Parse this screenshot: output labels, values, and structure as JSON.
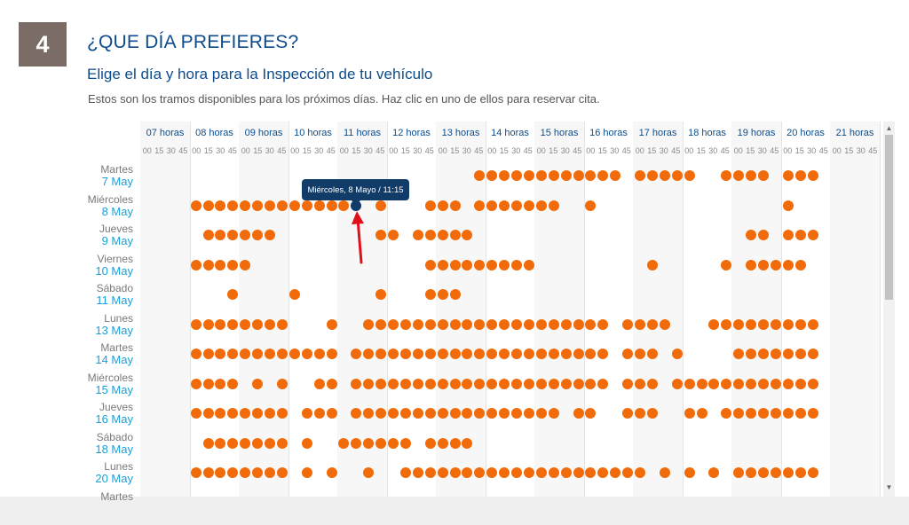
{
  "step": {
    "number": "4"
  },
  "heading": {
    "title": "¿QUE DÍA PREFIERES?",
    "subtitle": "Elige el día y hora para la Inspección de tu vehículo",
    "description": "Estos son los tramos disponibles para los próximos días. Haz clic en uno de ellos para reservar cita."
  },
  "hours": [
    "07 horas",
    "08 horas",
    "09 horas",
    "10 horas",
    "11 horas",
    "12 horas",
    "13 horas",
    "14 horas",
    "15 horas",
    "16 horas",
    "17 horas",
    "18 horas",
    "19 horas",
    "20 horas",
    "21 horas"
  ],
  "minutes_label": "00 15 30 45",
  "days": [
    {
      "weekday": "Martes",
      "date": "7 May",
      "slots": [
        27,
        28,
        29,
        30,
        31,
        32,
        33,
        34,
        35,
        36,
        37,
        38,
        40,
        41,
        42,
        43,
        44,
        47,
        48,
        49,
        50,
        52,
        53,
        54
      ]
    },
    {
      "weekday": "Miércoles",
      "date": "8 May",
      "slots": [
        4,
        5,
        6,
        7,
        8,
        9,
        10,
        11,
        12,
        13,
        14,
        15,
        16,
        17,
        19,
        23,
        24,
        25,
        27,
        28,
        29,
        30,
        31,
        32,
        33,
        36,
        52
      ]
    },
    {
      "weekday": "Jueves",
      "date": "9 May",
      "slots": [
        5,
        6,
        7,
        8,
        9,
        10,
        19,
        20,
        22,
        23,
        24,
        25,
        26,
        49,
        50,
        52,
        53,
        54
      ]
    },
    {
      "weekday": "Viernes",
      "date": "10 May",
      "slots": [
        4,
        5,
        6,
        7,
        8,
        23,
        24,
        25,
        26,
        27,
        28,
        29,
        30,
        31,
        41,
        47,
        49,
        50,
        51,
        52,
        53
      ]
    },
    {
      "weekday": "Sábado",
      "date": "11 May",
      "slots": [
        7,
        12,
        19,
        23,
        24,
        25
      ]
    },
    {
      "weekday": "Lunes",
      "date": "13 May",
      "slots": [
        4,
        5,
        6,
        7,
        8,
        9,
        10,
        11,
        15,
        18,
        19,
        20,
        21,
        22,
        23,
        24,
        25,
        26,
        27,
        28,
        29,
        30,
        31,
        32,
        33,
        34,
        35,
        36,
        37,
        39,
        40,
        41,
        42,
        46,
        47,
        48,
        49,
        50,
        51,
        52,
        53,
        54
      ]
    },
    {
      "weekday": "Martes",
      "date": "14 May",
      "slots": [
        4,
        5,
        6,
        7,
        8,
        9,
        10,
        11,
        12,
        13,
        14,
        15,
        17,
        18,
        19,
        20,
        21,
        22,
        23,
        24,
        25,
        26,
        27,
        28,
        29,
        30,
        31,
        32,
        33,
        34,
        35,
        36,
        37,
        39,
        40,
        41,
        43,
        48,
        49,
        50,
        51,
        52,
        53,
        54
      ]
    },
    {
      "weekday": "Miércoles",
      "date": "15 May",
      "slots": [
        4,
        5,
        6,
        7,
        9,
        11,
        14,
        15,
        17,
        18,
        19,
        20,
        21,
        22,
        23,
        24,
        25,
        26,
        27,
        28,
        29,
        30,
        31,
        32,
        33,
        34,
        35,
        36,
        37,
        39,
        40,
        41,
        43,
        44,
        45,
        46,
        47,
        48,
        49,
        50,
        51,
        52,
        53,
        54
      ]
    },
    {
      "weekday": "Jueves",
      "date": "16 May",
      "slots": [
        4,
        5,
        6,
        7,
        8,
        9,
        10,
        11,
        13,
        14,
        15,
        17,
        18,
        19,
        20,
        21,
        22,
        23,
        24,
        25,
        26,
        27,
        28,
        29,
        30,
        31,
        32,
        33,
        35,
        36,
        39,
        40,
        41,
        44,
        45,
        47,
        48,
        49,
        50,
        51,
        52,
        53,
        54
      ]
    },
    {
      "weekday": "Sábado",
      "date": "18 May",
      "slots": [
        5,
        6,
        7,
        8,
        9,
        10,
        11,
        13,
        16,
        17,
        18,
        19,
        20,
        21,
        23,
        24,
        25,
        26
      ]
    },
    {
      "weekday": "Lunes",
      "date": "20 May",
      "slots": [
        4,
        5,
        6,
        7,
        8,
        9,
        10,
        11,
        13,
        15,
        18,
        21,
        22,
        23,
        24,
        25,
        26,
        27,
        28,
        29,
        30,
        31,
        32,
        33,
        34,
        35,
        36,
        37,
        38,
        39,
        40,
        42,
        44,
        46,
        48,
        49,
        50,
        51,
        52,
        53,
        54
      ]
    },
    {
      "weekday": "Martes",
      "date": "",
      "slots": []
    }
  ],
  "selected": {
    "day_index": 1,
    "slot": 17
  },
  "tooltip": {
    "text": "Miércoles, 8 Mayo / 11:15"
  },
  "colors": {
    "slot": "#f26b0a",
    "selected": "#0e3b6b",
    "heading": "#0d4c8c",
    "date": "#1aa0d8",
    "arrow": "#e0101a"
  },
  "icons": {
    "scroll_up": "triangle-up-icon",
    "scroll_down": "triangle-down-icon",
    "pointer": "red-arrow-icon"
  }
}
